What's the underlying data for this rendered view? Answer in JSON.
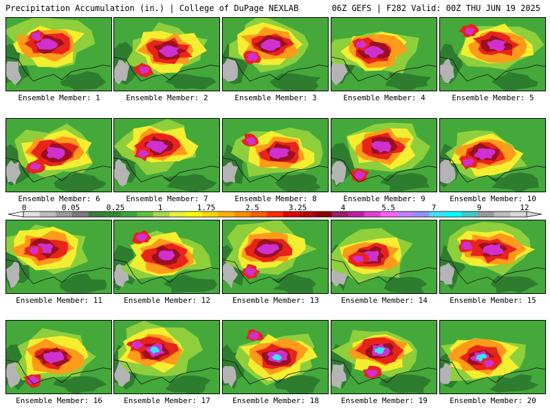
{
  "header": {
    "left": "Precipitation Accumulation (in.) | College of DuPage NEXLAB",
    "right": "06Z GEFS | F282 Valid: 00Z THU JUN 19 2025"
  },
  "panels": [
    {
      "label": "Ensemble Member: 1"
    },
    {
      "label": "Ensemble Member: 2"
    },
    {
      "label": "Ensemble Member: 3"
    },
    {
      "label": "Ensemble Member: 4"
    },
    {
      "label": "Ensemble Member: 5"
    },
    {
      "label": "Ensemble Member: 6"
    },
    {
      "label": "Ensemble Member: 7"
    },
    {
      "label": "Ensemble Member: 8"
    },
    {
      "label": "Ensemble Member: 9"
    },
    {
      "label": "Ensemble Member: 10"
    },
    {
      "label": "Ensemble Member: 11"
    },
    {
      "label": "Ensemble Member: 12"
    },
    {
      "label": "Ensemble Member: 13"
    },
    {
      "label": "Ensemble Member: 14"
    },
    {
      "label": "Ensemble Member: 15"
    },
    {
      "label": "Ensemble Member: 16"
    },
    {
      "label": "Ensemble Member: 17"
    },
    {
      "label": "Ensemble Member: 18"
    },
    {
      "label": "Ensemble Member: 19"
    },
    {
      "label": "Ensemble Member: 20"
    }
  ],
  "colorbar": {
    "labels": [
      "0",
      "0.05",
      "0.25",
      "1",
      "1.75",
      "2.5",
      "3.25",
      "4",
      "5.5",
      "7",
      "9",
      "12"
    ],
    "colors": [
      "#e0e0e0",
      "#bdbdbd",
      "#9a9a9a",
      "#7a7a7a",
      "#3d7a3d",
      "#2e8b2e",
      "#3aa63a",
      "#62bf3a",
      "#a6d94a",
      "#e8f03c",
      "#ffff00",
      "#ffd700",
      "#ffb000",
      "#ff8c00",
      "#ff5a00",
      "#ff2a00",
      "#e00000",
      "#b80000",
      "#8b0000",
      "#9c1a6e",
      "#c020a0",
      "#e040d0",
      "#ff60ff",
      "#c080ff",
      "#9090ff",
      "#40e0ff",
      "#00ffff",
      "#40c8c8",
      "#9a9a9a",
      "#bcbcbc",
      "#d8d8d8"
    ]
  },
  "palette": {
    "gray": "#b4b4b4",
    "dkgreen": "#2e7d2e",
    "green": "#45a83a",
    "ltgreen": "#8fcf3c",
    "yellow": "#f4ee30",
    "orange": "#ff9a1a",
    "red": "#e8241a",
    "maroon": "#9a1020",
    "magenta": "#d030d0",
    "purple": "#a040e0",
    "cyan": "#30e8f0",
    "ltgray": "#cfcfcf",
    "coast": "#1a1a1a"
  }
}
